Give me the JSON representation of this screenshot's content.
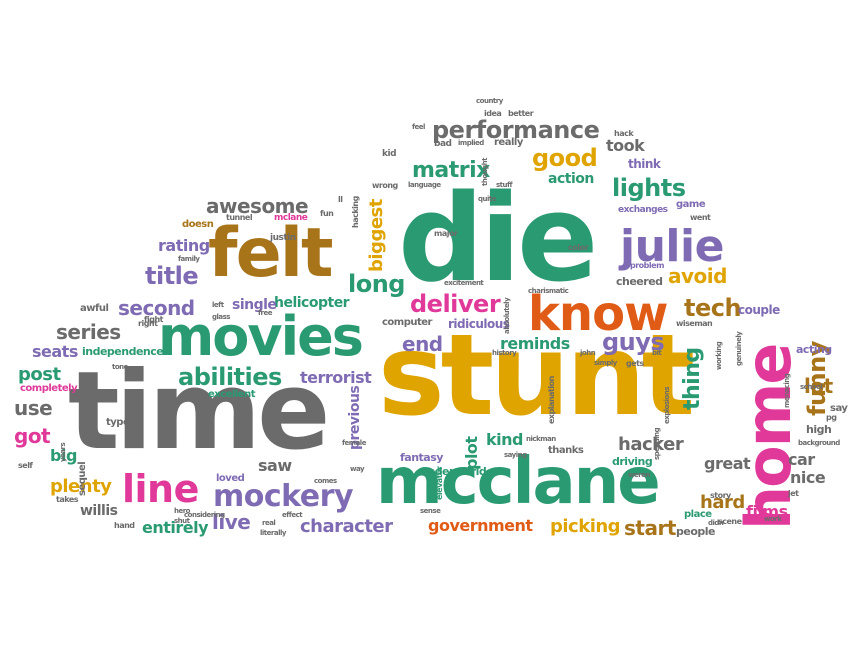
{
  "words": {
    "die": "die",
    "stunt": "stunt",
    "time": "time",
    "mcclane": "mcclane",
    "felt": "felt",
    "movies": "movies",
    "home": "home",
    "know": "know",
    "julie": "julie",
    "line": "line",
    "mockery": "mockery",
    "abilities": "abilities",
    "performance": "performance",
    "matrix": "matrix",
    "good": "good",
    "lights": "lights",
    "deliver": "deliver",
    "long": "long",
    "tech": "tech",
    "guys": "guys",
    "awesome": "awesome",
    "title": "title",
    "second": "second",
    "series": "series",
    "helicopter": "helicopter",
    "terrorist": "terrorist",
    "funny": "funny",
    "thing": "thing",
    "biggest": "biggest",
    "avoid": "avoid",
    "rating": "rating",
    "end": "end",
    "reminds": "reminds",
    "character": "character",
    "government": "government",
    "picking": "picking",
    "start": "start",
    "hacker": "hacker",
    "great": "great",
    "kind": "kind",
    "plot": "plot",
    "previous": "previous",
    "live": "live",
    "saw": "saw",
    "plenty": "plenty",
    "entirely": "entirely",
    "willis": "willis",
    "got": "got",
    "use": "use",
    "post": "post",
    "seats": "seats",
    "big": "big",
    "lot": "lot",
    "car": "car",
    "nice": "nice",
    "hard": "hard",
    "films": "films",
    "took": "took",
    "action": "action",
    "think": "think",
    "ridiculous": "ridiculous",
    "fantasy": "fantasy",
    "underworld": "underworld",
    "thanks": "thanks",
    "driving": "driving",
    "acting": "acting",
    "high": "high",
    "say": "say",
    "couple": "couple",
    "place": "place",
    "people": "people",
    "scene": "scene",
    "story": "story",
    "single": "single",
    "independence": "independence",
    "excellent": "excellent",
    "loved": "loved",
    "sequel": "sequel",
    "completely": "completely",
    "awful": "awful",
    "right": "right",
    "computer": "computer",
    "explanation": "explanation",
    "elevator": "elevator",
    "mclane": "mclane",
    "doesn": "doesn",
    "justin": "justin",
    "family": "family",
    "tunnel": "tunnel",
    "fight": "fight",
    "hacking": "hacking",
    "fun": "fun",
    "major": "major",
    "color": "color",
    "problem": "problem",
    "cheered": "cheered",
    "exchanges": "exchanges",
    "game": "game",
    "went": "went",
    "school": "school",
    "pg": "pg",
    "hack": "hack",
    "idea": "idea",
    "better": "better",
    "country": "country",
    "really": "really",
    "implied": "implied",
    "bad": "bad",
    "feel": "feel",
    "kid": "kid",
    "language": "language",
    "wrong": "wrong",
    "quite": "quite",
    "thought": "thought",
    "stuff": "stuff",
    "excitement": "excitement",
    "absolutely": "absolutely",
    "charismatic": "charismatic",
    "wiseman": "wiseman",
    "genuinely": "genuinely",
    "menacing": "menacing",
    "background": "background",
    "working": "working",
    "bit": "bit",
    "history": "history",
    "john": "john",
    "simply": "simply",
    "gets": "gets",
    "explosions": "explosions",
    "speeding": "speeding",
    "saying": "saying",
    "nickman": "nickman",
    "female": "female",
    "way": "way",
    "comes": "comes",
    "real": "real",
    "literally": "literally",
    "effect": "effect",
    "free": "free",
    "glass": "glass",
    "left": "left",
    "hero": "hero",
    "shut": "shut",
    "type": "type",
    "tone": "tone",
    "self": "self",
    "takes": "takes",
    "hand": "hand",
    "years": "years",
    "jet": "jet",
    "work": "work",
    "didn": "didn",
    "weren": "weren",
    "sense": "sense",
    "ll": "ll",
    "considering": "considering"
  }
}
